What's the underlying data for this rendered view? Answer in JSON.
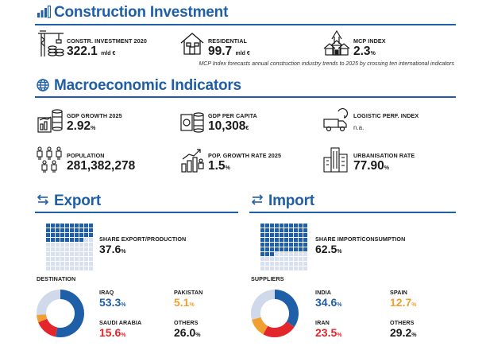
{
  "colors": {
    "primary": "#1f5fa8",
    "red": "#e3262b",
    "orange": "#f0a030",
    "light": "#cfd9ea"
  },
  "construction": {
    "title": "Construction Investment",
    "invest": {
      "label": "CONSTR. INVESTMENT 2020",
      "value": "322.1",
      "unit": "mld €",
      "icon": "crane-coins-icon"
    },
    "residential": {
      "label": "RESIDENTIAL",
      "value": "99.7",
      "unit": "mld €",
      "icon": "house-icon"
    },
    "mcp": {
      "label": "MCP INDEX",
      "value": "2.3",
      "unit": "%",
      "icon": "houses-arrow-icon"
    },
    "note": "MCP Index forecasts annual construction industry trends to 2025 by crossing ten international indicators"
  },
  "macro": {
    "title": "Macroeconomic Indicators",
    "gdp_growth": {
      "label": "GDP GROWTH 2025",
      "value": "2.92",
      "unit": "%"
    },
    "gdp_capita": {
      "label": "GDP PER CAPITA",
      "value": "10,308",
      "unit": "€"
    },
    "logistic": {
      "label": "LOGISTIC PERF. INDEX",
      "value": "n.a."
    },
    "population": {
      "label": "POPULATION",
      "value": "281,382,278"
    },
    "pop_growth": {
      "label": "POP. GROWTH RATE 2025",
      "value": "1.5",
      "unit": "%"
    },
    "urban": {
      "label": "URBANISATION RATE",
      "value": "77.90",
      "unit": "%"
    }
  },
  "export": {
    "title": "Export",
    "share_label": "SHARE EXPORT/PRODUCTION",
    "share_value": "37.6",
    "share_unit": "%",
    "share_fraction": 0.376,
    "dest_label": "DESTINATION",
    "items": [
      {
        "name": "IRAQ",
        "value": "53.3",
        "unit": "%",
        "color": "#1f5fa8",
        "pct": 53.3
      },
      {
        "name": "PAKISTAN",
        "value": "5.1",
        "unit": "%",
        "color": "#f0a030",
        "pct": 5.1
      },
      {
        "name": "SAUDI ARABIA",
        "value": "15.6",
        "unit": "%",
        "color": "#e3262b",
        "pct": 15.6
      },
      {
        "name": "OTHERS",
        "value": "26.0",
        "unit": "%",
        "color": "#1a1a1a",
        "pct": 26.0
      }
    ]
  },
  "import": {
    "title": "Import",
    "share_label": "SHARE IMPORT/CONSUMPTION",
    "share_value": "62.5",
    "share_unit": "%",
    "share_fraction": 0.625,
    "dest_label": "SUPPLIERS",
    "items": [
      {
        "name": "INDIA",
        "value": "34.6",
        "unit": "%",
        "color": "#1f5fa8",
        "pct": 34.6
      },
      {
        "name": "SPAIN",
        "value": "12.7",
        "unit": "%",
        "color": "#f0a030",
        "pct": 12.7
      },
      {
        "name": "IRAN",
        "value": "23.5",
        "unit": "%",
        "color": "#e3262b",
        "pct": 23.5
      },
      {
        "name": "OTHERS",
        "value": "29.2",
        "unit": "%",
        "color": "#1a1a1a",
        "pct": 29.2
      }
    ]
  }
}
